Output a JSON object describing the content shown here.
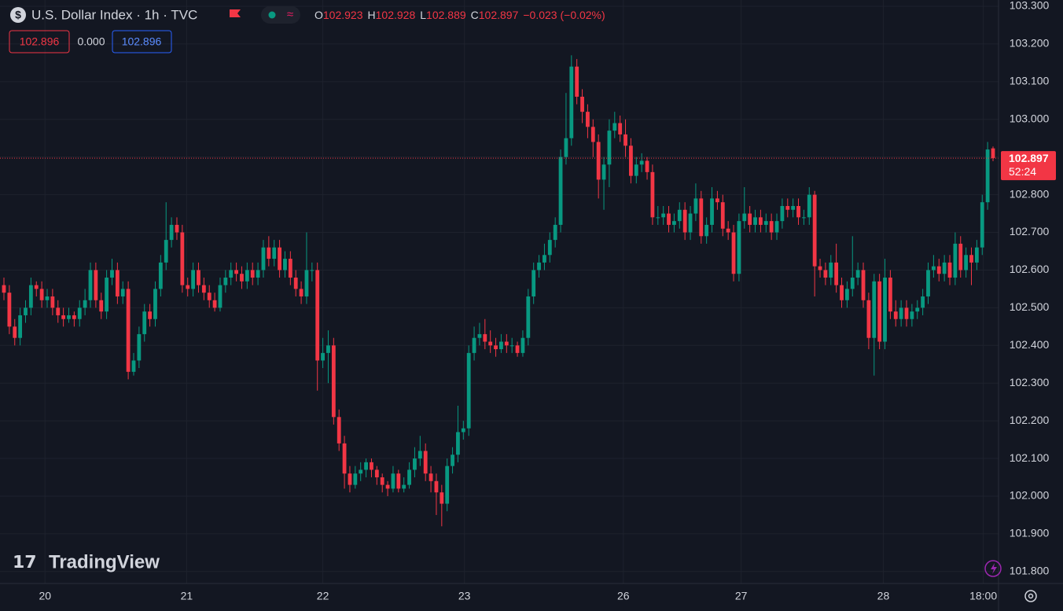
{
  "header": {
    "symbol": "U.S. Dollar Index · 1h · TVC",
    "legend": [
      {
        "key": "O",
        "value": "102.923"
      },
      {
        "key": "H",
        "value": "102.928"
      },
      {
        "key": "L",
        "value": "102.889"
      },
      {
        "key": "C",
        "value": "102.897"
      }
    ],
    "change": "−0.023 (−0.02%)",
    "inputs": [
      "102.896",
      "0.000",
      "102.896"
    ]
  },
  "watermark": "TradingView",
  "chart_data": {
    "type": "candlestick",
    "up_color": "#089981",
    "down_color": "#f23645",
    "last_price": 102.897,
    "countdown": "52:24",
    "ylim": [
      101.7683,
      103.3
    ],
    "yticks": [
      {
        "value": 101.8,
        "label": "101.800"
      },
      {
        "value": 101.9,
        "label": "101.900"
      },
      {
        "value": 102.0,
        "label": "102.000"
      },
      {
        "value": 102.1,
        "label": "102.100"
      },
      {
        "value": 102.2,
        "label": "102.200"
      },
      {
        "value": 102.3,
        "label": "102.300"
      },
      {
        "value": 102.4,
        "label": "102.400"
      },
      {
        "value": 102.5,
        "label": "102.500"
      },
      {
        "value": 102.6,
        "label": "102.600"
      },
      {
        "value": 102.7,
        "label": "102.700"
      },
      {
        "value": 102.8,
        "label": "102.800"
      },
      {
        "value": 102.9,
        "label": "102.900"
      },
      {
        "value": 103.0,
        "label": "103.000"
      },
      {
        "value": 103.1,
        "label": "103.100"
      },
      {
        "value": 103.2,
        "label": "103.200"
      },
      {
        "value": 103.3,
        "label": "103.300"
      }
    ],
    "xticks": [
      {
        "value": 7.6,
        "label": "20"
      },
      {
        "value": 33.8,
        "label": "21"
      },
      {
        "value": 59,
        "label": "22"
      },
      {
        "value": 85.2,
        "label": "23"
      },
      {
        "value": 114.6,
        "label": "26"
      },
      {
        "value": 136.4,
        "label": "27"
      },
      {
        "value": 162.7,
        "label": "28"
      },
      {
        "value": 181.2,
        "label": "18:00"
      }
    ],
    "candles": [
      [
        102.56,
        102.58,
        102.52,
        102.54
      ],
      [
        102.54,
        102.56,
        102.43,
        102.45
      ],
      [
        102.45,
        102.47,
        102.4,
        102.42
      ],
      [
        102.42,
        102.5,
        102.4,
        102.48
      ],
      [
        102.48,
        102.52,
        102.46,
        102.5
      ],
      [
        102.5,
        102.58,
        102.48,
        102.56
      ],
      [
        102.56,
        102.57,
        102.53,
        102.55
      ],
      [
        102.55,
        102.57,
        102.5,
        102.52
      ],
      [
        102.52,
        102.55,
        102.5,
        102.53
      ],
      [
        102.53,
        102.55,
        102.48,
        102.5
      ],
      [
        102.5,
        102.52,
        102.46,
        102.48
      ],
      [
        102.48,
        102.5,
        102.45,
        102.47
      ],
      [
        102.47,
        102.5,
        102.46,
        102.48
      ],
      [
        102.48,
        102.49,
        102.45,
        102.47
      ],
      [
        102.47,
        102.52,
        102.45,
        102.5
      ],
      [
        102.5,
        102.55,
        102.48,
        102.52
      ],
      [
        102.52,
        102.62,
        102.5,
        102.6
      ],
      [
        102.6,
        102.62,
        102.5,
        102.52
      ],
      [
        102.52,
        102.54,
        102.47,
        102.49
      ],
      [
        102.49,
        102.6,
        102.47,
        102.58
      ],
      [
        102.58,
        102.63,
        102.56,
        102.6
      ],
      [
        102.6,
        102.62,
        102.51,
        102.53
      ],
      [
        102.53,
        102.57,
        102.51,
        102.55
      ],
      [
        102.55,
        102.57,
        102.31,
        102.33
      ],
      [
        102.33,
        102.38,
        102.32,
        102.36
      ],
      [
        102.36,
        102.45,
        102.34,
        102.43
      ],
      [
        102.43,
        102.51,
        102.41,
        102.49
      ],
      [
        102.49,
        102.51,
        102.45,
        102.47
      ],
      [
        102.47,
        102.57,
        102.45,
        102.55
      ],
      [
        102.55,
        102.64,
        102.53,
        102.62
      ],
      [
        102.62,
        102.78,
        102.6,
        102.68
      ],
      [
        102.68,
        102.74,
        102.66,
        102.72
      ],
      [
        102.72,
        102.74,
        102.68,
        102.7
      ],
      [
        102.7,
        102.72,
        102.54,
        102.56
      ],
      [
        102.56,
        102.58,
        102.53,
        102.55
      ],
      [
        102.55,
        102.62,
        102.53,
        102.6
      ],
      [
        102.6,
        102.62,
        102.54,
        102.56
      ],
      [
        102.56,
        102.58,
        102.52,
        102.54
      ],
      [
        102.54,
        102.56,
        102.5,
        102.52
      ],
      [
        102.52,
        102.54,
        102.49,
        102.5
      ],
      [
        102.5,
        102.58,
        102.49,
        102.56
      ],
      [
        102.56,
        102.6,
        102.54,
        102.58
      ],
      [
        102.58,
        102.62,
        102.56,
        102.6
      ],
      [
        102.6,
        102.62,
        102.57,
        102.59
      ],
      [
        102.59,
        102.61,
        102.55,
        102.57
      ],
      [
        102.57,
        102.62,
        102.55,
        102.6
      ],
      [
        102.6,
        102.62,
        102.56,
        102.58
      ],
      [
        102.58,
        102.62,
        102.56,
        102.6
      ],
      [
        102.6,
        102.68,
        102.58,
        102.66
      ],
      [
        102.66,
        102.69,
        102.61,
        102.63
      ],
      [
        102.63,
        102.68,
        102.61,
        102.66
      ],
      [
        102.66,
        102.68,
        102.58,
        102.6
      ],
      [
        102.6,
        102.65,
        102.58,
        102.63
      ],
      [
        102.63,
        102.65,
        102.56,
        102.58
      ],
      [
        102.58,
        102.6,
        102.53,
        102.55
      ],
      [
        102.55,
        102.57,
        102.51,
        102.53
      ],
      [
        102.53,
        102.7,
        102.51,
        102.6
      ],
      [
        102.6,
        102.62,
        102.57,
        102.6
      ],
      [
        102.6,
        102.62,
        102.28,
        102.36
      ],
      [
        102.36,
        102.42,
        102.34,
        102.38
      ],
      [
        102.38,
        102.44,
        102.3,
        102.4
      ],
      [
        102.4,
        102.42,
        102.19,
        102.21
      ],
      [
        102.21,
        102.23,
        102.12,
        102.14
      ],
      [
        102.14,
        102.16,
        102.02,
        102.06
      ],
      [
        102.06,
        102.08,
        102.01,
        102.03
      ],
      [
        102.03,
        102.08,
        102.02,
        102.06
      ],
      [
        102.06,
        102.09,
        102.04,
        102.07
      ],
      [
        102.07,
        102.1,
        102.05,
        102.09
      ],
      [
        102.09,
        102.1,
        102.05,
        102.07
      ],
      [
        102.07,
        102.08,
        102.03,
        102.05
      ],
      [
        102.05,
        102.06,
        102.01,
        102.03
      ],
      [
        102.03,
        102.04,
        102.0,
        102.02
      ],
      [
        102.02,
        102.08,
        102.01,
        102.06
      ],
      [
        102.06,
        102.07,
        102.01,
        102.02
      ],
      [
        102.02,
        102.05,
        102.01,
        102.03
      ],
      [
        102.03,
        102.09,
        102.02,
        102.07
      ],
      [
        102.07,
        102.13,
        102.05,
        102.1
      ],
      [
        102.1,
        102.16,
        102.08,
        102.12
      ],
      [
        102.12,
        102.14,
        102.04,
        102.06
      ],
      [
        102.06,
        102.08,
        102.01,
        102.04
      ],
      [
        102.04,
        102.06,
        101.95,
        102.01
      ],
      [
        102.01,
        102.03,
        101.92,
        101.98
      ],
      [
        101.98,
        102.1,
        101.96,
        102.08
      ],
      [
        102.08,
        102.13,
        102.06,
        102.11
      ],
      [
        102.11,
        102.24,
        102.09,
        102.17
      ],
      [
        102.17,
        102.2,
        102.15,
        102.18
      ],
      [
        102.18,
        102.4,
        102.16,
        102.38
      ],
      [
        102.38,
        102.45,
        102.36,
        102.42
      ],
      [
        102.42,
        102.46,
        102.4,
        102.43
      ],
      [
        102.43,
        102.47,
        102.39,
        102.41
      ],
      [
        102.41,
        102.44,
        102.38,
        102.4
      ],
      [
        102.4,
        102.42,
        102.37,
        102.39
      ],
      [
        102.39,
        102.43,
        102.38,
        102.41
      ],
      [
        102.41,
        102.43,
        102.38,
        102.4
      ],
      [
        102.4,
        102.42,
        102.38,
        102.4
      ],
      [
        102.4,
        102.41,
        102.37,
        102.38
      ],
      [
        102.38,
        102.44,
        102.37,
        102.42
      ],
      [
        102.42,
        102.55,
        102.4,
        102.53
      ],
      [
        102.53,
        102.62,
        102.51,
        102.6
      ],
      [
        102.6,
        102.64,
        102.58,
        102.62
      ],
      [
        102.62,
        102.67,
        102.6,
        102.64
      ],
      [
        102.64,
        102.7,
        102.62,
        102.68
      ],
      [
        102.68,
        102.74,
        102.66,
        102.72
      ],
      [
        102.72,
        102.92,
        102.7,
        102.9
      ],
      [
        102.9,
        103.07,
        102.88,
        102.95
      ],
      [
        102.95,
        103.17,
        102.93,
        103.14
      ],
      [
        103.14,
        103.16,
        103.04,
        103.06
      ],
      [
        103.06,
        103.08,
        102.99,
        103.02
      ],
      [
        103.02,
        103.04,
        102.95,
        102.98
      ],
      [
        102.98,
        103.0,
        102.9,
        102.94
      ],
      [
        102.94,
        102.96,
        102.79,
        102.84
      ],
      [
        102.84,
        102.9,
        102.76,
        102.88
      ],
      [
        102.88,
        103.0,
        102.82,
        102.97
      ],
      [
        102.97,
        103.02,
        102.95,
        102.99
      ],
      [
        102.99,
        103.01,
        102.94,
        102.96
      ],
      [
        102.96,
        103.0,
        102.9,
        102.93
      ],
      [
        102.93,
        102.95,
        102.83,
        102.85
      ],
      [
        102.85,
        102.9,
        102.83,
        102.88
      ],
      [
        102.88,
        102.91,
        102.86,
        102.89
      ],
      [
        102.89,
        102.9,
        102.84,
        102.86
      ],
      [
        102.86,
        102.88,
        102.72,
        102.74
      ],
      [
        102.74,
        102.77,
        102.72,
        102.74
      ],
      [
        102.74,
        102.77,
        102.72,
        102.75
      ],
      [
        102.75,
        102.77,
        102.7,
        102.72
      ],
      [
        102.72,
        102.75,
        102.7,
        102.73
      ],
      [
        102.73,
        102.78,
        102.71,
        102.76
      ],
      [
        102.76,
        102.78,
        102.68,
        102.7
      ],
      [
        102.7,
        102.77,
        102.68,
        102.75
      ],
      [
        102.75,
        102.83,
        102.73,
        102.79
      ],
      [
        102.79,
        102.81,
        102.67,
        102.69
      ],
      [
        102.69,
        102.74,
        102.67,
        102.72
      ],
      [
        102.72,
        102.82,
        102.7,
        102.79
      ],
      [
        102.79,
        102.81,
        102.76,
        102.78
      ],
      [
        102.78,
        102.8,
        102.69,
        102.71
      ],
      [
        102.71,
        102.73,
        102.68,
        102.7
      ],
      [
        102.7,
        102.72,
        102.57,
        102.59
      ],
      [
        102.59,
        102.75,
        102.57,
        102.73
      ],
      [
        102.73,
        102.82,
        102.71,
        102.75
      ],
      [
        102.75,
        102.77,
        102.7,
        102.72
      ],
      [
        102.72,
        102.76,
        102.7,
        102.74
      ],
      [
        102.74,
        102.76,
        102.7,
        102.72
      ],
      [
        102.72,
        102.75,
        102.7,
        102.73
      ],
      [
        102.73,
        102.75,
        102.68,
        102.7
      ],
      [
        102.7,
        102.75,
        102.68,
        102.73
      ],
      [
        102.73,
        102.79,
        102.71,
        102.77
      ],
      [
        102.77,
        102.79,
        102.74,
        102.76
      ],
      [
        102.76,
        102.79,
        102.74,
        102.77
      ],
      [
        102.77,
        102.79,
        102.72,
        102.74
      ],
      [
        102.74,
        102.76,
        102.72,
        102.74
      ],
      [
        102.74,
        102.82,
        102.72,
        102.8
      ],
      [
        102.8,
        102.81,
        102.53,
        102.61
      ],
      [
        102.61,
        102.63,
        102.58,
        102.6
      ],
      [
        102.6,
        102.62,
        102.56,
        102.58
      ],
      [
        102.58,
        102.64,
        102.56,
        102.62
      ],
      [
        102.62,
        102.67,
        102.54,
        102.56
      ],
      [
        102.56,
        102.58,
        102.5,
        102.52
      ],
      [
        102.52,
        102.57,
        102.5,
        102.55
      ],
      [
        102.55,
        102.69,
        102.53,
        102.58
      ],
      [
        102.58,
        102.62,
        102.56,
        102.6
      ],
      [
        102.6,
        102.62,
        102.5,
        102.52
      ],
      [
        102.52,
        102.54,
        102.39,
        102.42
      ],
      [
        102.42,
        102.59,
        102.32,
        102.57
      ],
      [
        102.57,
        102.59,
        102.39,
        102.41
      ],
      [
        102.41,
        102.63,
        102.39,
        102.58
      ],
      [
        102.58,
        102.6,
        102.47,
        102.49
      ],
      [
        102.49,
        102.52,
        102.45,
        102.47
      ],
      [
        102.47,
        102.52,
        102.45,
        102.5
      ],
      [
        102.5,
        102.52,
        102.45,
        102.47
      ],
      [
        102.47,
        102.51,
        102.45,
        102.49
      ],
      [
        102.49,
        102.52,
        102.47,
        102.5
      ],
      [
        102.5,
        102.55,
        102.48,
        102.53
      ],
      [
        102.53,
        102.62,
        102.51,
        102.6
      ],
      [
        102.6,
        102.64,
        102.58,
        102.61
      ],
      [
        102.61,
        102.63,
        102.57,
        102.59
      ],
      [
        102.59,
        102.64,
        102.57,
        102.62
      ],
      [
        102.62,
        102.64,
        102.56,
        102.58
      ],
      [
        102.58,
        102.7,
        102.56,
        102.67
      ],
      [
        102.67,
        102.69,
        102.58,
        102.6
      ],
      [
        102.6,
        102.66,
        102.58,
        102.64
      ],
      [
        102.64,
        102.66,
        102.56,
        102.62
      ],
      [
        102.62,
        102.68,
        102.6,
        102.66
      ],
      [
        102.66,
        102.8,
        102.64,
        102.78
      ],
      [
        102.78,
        102.94,
        102.76,
        102.92
      ],
      [
        102.923,
        102.928,
        102.889,
        102.897
      ]
    ]
  }
}
